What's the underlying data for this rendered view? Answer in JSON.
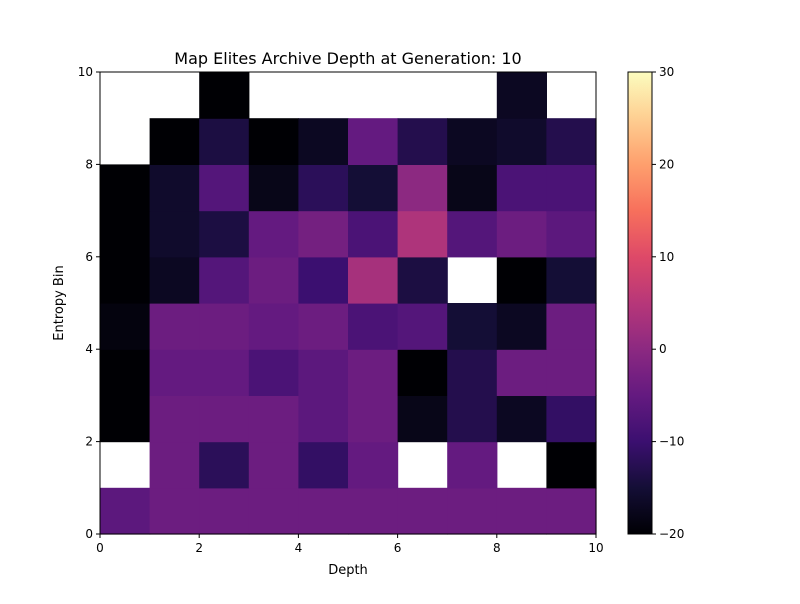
{
  "chart_data": {
    "type": "heatmap",
    "title": "Map Elites Archive Depth at Generation: 10",
    "xlabel": "Depth",
    "ylabel": "Entropy Bin",
    "xlim": [
      0,
      10
    ],
    "ylim": [
      0,
      10
    ],
    "xticks": [
      "0",
      "2",
      "4",
      "6",
      "8",
      "10"
    ],
    "yticks": [
      "0",
      "2",
      "4",
      "6",
      "8",
      "10"
    ],
    "colormap": "magma",
    "colorbar": {
      "vmin": -20,
      "vmax": 30,
      "ticks": [
        "−20",
        "−10",
        "0",
        "10",
        "20",
        "30"
      ]
    },
    "cells_note_empty": null,
    "grid": [
      [
        -6,
        -4,
        -4,
        -4,
        -4,
        -4,
        -4,
        -4,
        -4,
        -4
      ],
      [
        null,
        -4,
        -12,
        -4,
        -11,
        -5,
        null,
        -5,
        null,
        -20
      ],
      [
        -20,
        -4,
        -4,
        -4,
        -6,
        -4,
        -18,
        -13,
        -17,
        -11
      ],
      [
        -20,
        -5,
        -5,
        -8,
        -6,
        -4,
        -20,
        -13,
        -4,
        -4
      ],
      [
        -19,
        -4,
        -4,
        -5,
        -4,
        -8,
        -7,
        -15,
        -17,
        -4
      ],
      [
        -20,
        -17,
        -7,
        -4,
        -10,
        3,
        -14,
        null,
        -20,
        -15
      ],
      [
        -20,
        -16,
        -14,
        -5,
        -3,
        -8,
        4,
        -7,
        -4,
        -6
      ],
      [
        -20,
        -16,
        -7,
        -18,
        -12,
        -15,
        0,
        -18,
        -8,
        -8
      ],
      [
        null,
        -20,
        -14,
        -20,
        -17,
        -5,
        -13,
        -17,
        -16,
        -13
      ],
      [
        null,
        null,
        -20,
        null,
        null,
        null,
        null,
        null,
        -17,
        null
      ]
    ]
  }
}
